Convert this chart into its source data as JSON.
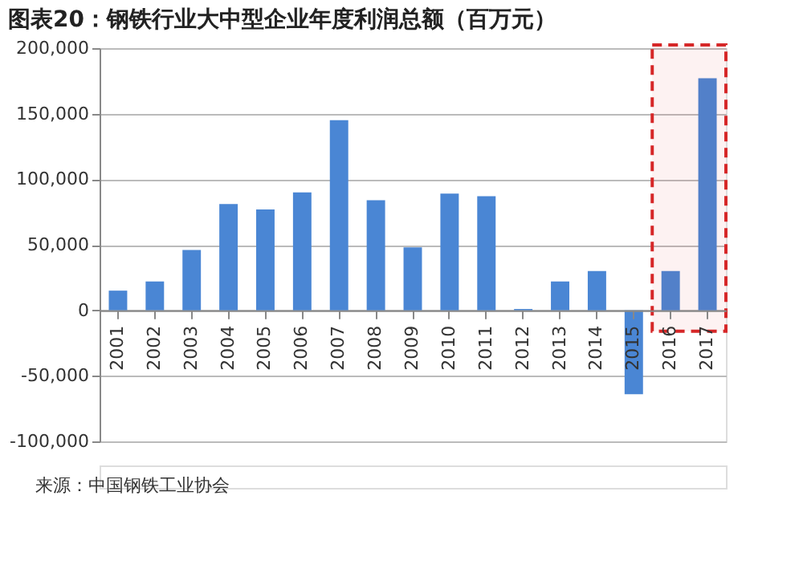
{
  "chart_data": {
    "type": "bar",
    "title": "图表20：钢铁行业大中型企业年度利润总额（百万元）",
    "categories": [
      "2001",
      "2002",
      "2003",
      "2004",
      "2005",
      "2006",
      "2007",
      "2008",
      "2009",
      "2010",
      "2011",
      "2012",
      "2013",
      "2014",
      "2015",
      "2016",
      "2017"
    ],
    "values": [
      15000,
      22000,
      46000,
      81000,
      77000,
      90000,
      145000,
      84000,
      48000,
      89000,
      87000,
      1000,
      22000,
      30000,
      -64000,
      30000,
      177000
    ],
    "color": "#4a86d4",
    "ylim": [
      -100000,
      200000
    ],
    "yticks": [
      {
        "value": -100000,
        "label": "-100,000"
      },
      {
        "value": -50000,
        "label": "-50,000"
      },
      {
        "value": 0,
        "label": "0"
      },
      {
        "value": 50000,
        "label": "50,000"
      },
      {
        "value": 100000,
        "label": "100,000"
      },
      {
        "value": 150000,
        "label": "150,000"
      },
      {
        "value": 200000,
        "label": "200,000"
      }
    ],
    "grid": "y",
    "bands": [
      {
        "axis": "x",
        "from": "2016",
        "to": "2017",
        "color": "#d62728"
      }
    ],
    "annotations": [
      "来源：中国钢铁工业协会"
    ]
  }
}
